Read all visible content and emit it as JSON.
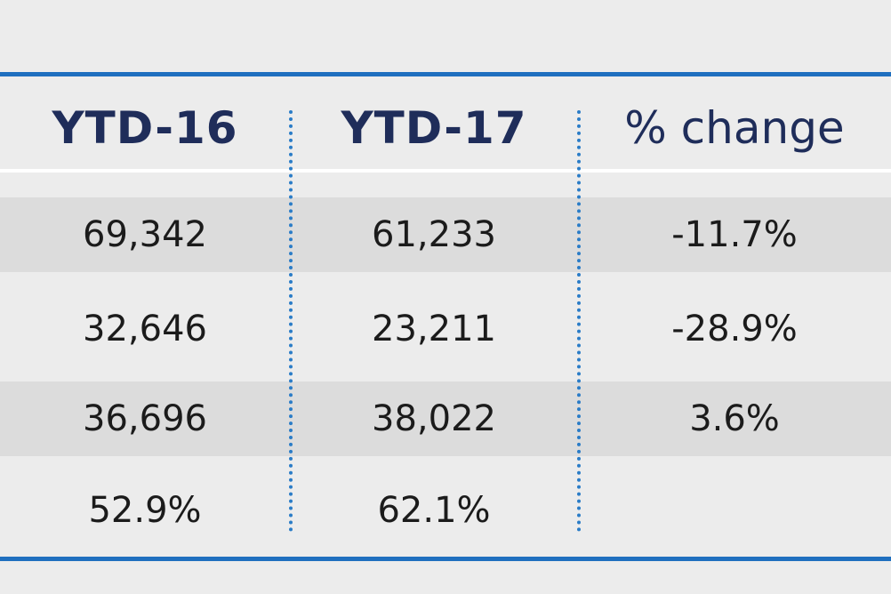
{
  "table": {
    "headers": [
      "YTD-16",
      "YTD-17",
      "% change"
    ],
    "rows": [
      [
        "69,342",
        "61,233",
        "-11.7%"
      ],
      [
        "32,646",
        "23,211",
        "-28.9%"
      ],
      [
        "36,696",
        "38,022",
        "3.6%"
      ],
      [
        "52.9%",
        "62.1%",
        ""
      ]
    ]
  },
  "colors": {
    "accent_blue": "#1f6fbf",
    "header_text": "#1f2d5a",
    "background": "#ececec",
    "row_shade": "#dcdcdc"
  }
}
